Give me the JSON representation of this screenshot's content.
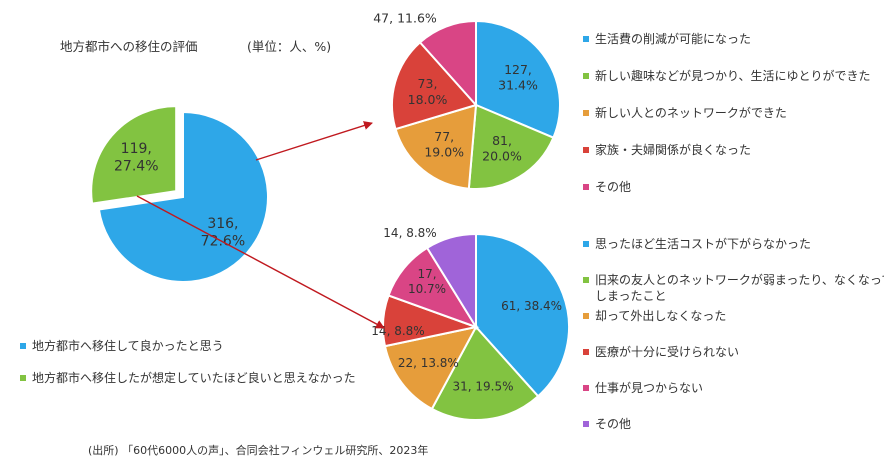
{
  "chart_data": [
    {
      "type": "pie",
      "title": "地方都市への移住の評価",
      "subtitle": "(単位：人、%)",
      "slices": [
        {
          "label": "地方都市へ移住して良かったと思う",
          "value": 316,
          "percent": "72.6%",
          "color": "#2ea7e8"
        },
        {
          "label": "地方都市へ移住したが想定していたほど良いと思えなかった",
          "value": 119,
          "percent": "27.4%",
          "color": "#82c341",
          "exploded": true
        }
      ],
      "legend_position": "bottom-left"
    },
    {
      "type": "pie",
      "slices": [
        {
          "label": "生活費の削減が可能になった",
          "value": 127,
          "percent": "31.4%",
          "color": "#2ea7e8"
        },
        {
          "label": "新しい趣味などが見つかり、生活にゆとりができた",
          "value": 81,
          "percent": "20.0%",
          "color": "#82c341"
        },
        {
          "label": "新しい人とのネットワークができた",
          "value": 77,
          "percent": "19.0%",
          "color": "#e69d3b"
        },
        {
          "label": "家族・夫婦関係が良くなった",
          "value": 73,
          "percent": "18.0%",
          "color": "#d9423a"
        },
        {
          "label": "その他",
          "value": 47,
          "percent": "11.6%",
          "color": "#d94585"
        }
      ],
      "legend_position": "right"
    },
    {
      "type": "pie",
      "slices": [
        {
          "label": "思ったほど生活コストが下がらなかった",
          "value": 61,
          "percent": "38.4%",
          "color": "#2ea7e8"
        },
        {
          "label": "旧来の友人とのネットワークが弱まったり、なくなってしまったこと",
          "value": 31,
          "percent": "19.5%",
          "color": "#82c341"
        },
        {
          "label": "却って外出しなくなった",
          "value": 22,
          "percent": "13.8%",
          "color": "#e69d3b"
        },
        {
          "label": "医療が十分に受けられない",
          "value": 14,
          "percent": "8.8%",
          "color": "#d9423a"
        },
        {
          "label": "仕事が見つからない",
          "value": 17,
          "percent": "10.7%",
          "color": "#d94585"
        },
        {
          "label": "その他",
          "value": 14,
          "percent": "8.8%",
          "color": "#a064d9"
        }
      ],
      "legend_position": "right"
    }
  ],
  "source": "(出所) 「60代6000人の声」、合同会社フィンウェル研究所、2023年",
  "colors": {
    "arrow": "#c0191f",
    "label_text": "#333333"
  }
}
